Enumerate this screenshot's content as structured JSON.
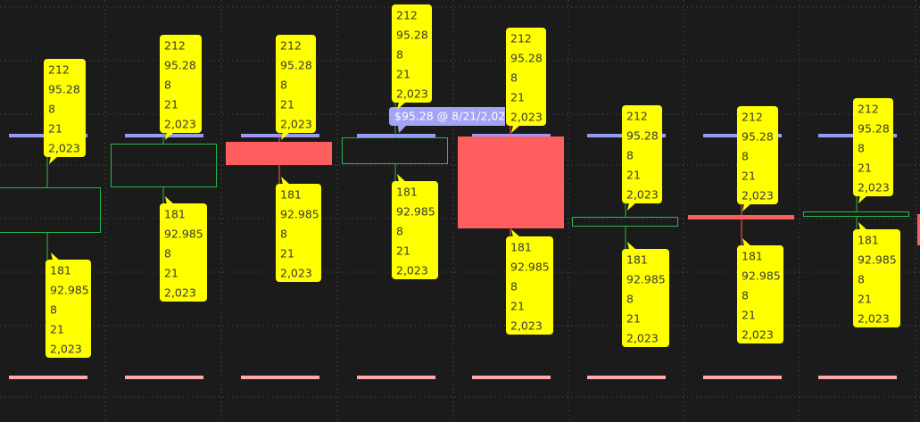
{
  "callouts": [
    {
      "upper": [
        "212",
        "95.28",
        "8",
        "21",
        "2,023"
      ],
      "lower": [
        "181",
        "92.985",
        "8",
        "21",
        "2,023"
      ]
    },
    {
      "upper": [
        "212",
        "95.28",
        "8",
        "21",
        "2,023"
      ],
      "lower": [
        "181",
        "92.985",
        "8",
        "21",
        "2,023"
      ]
    },
    {
      "upper": [
        "212",
        "95.28",
        "8",
        "21",
        "2,023"
      ],
      "lower": [
        "181",
        "92.985",
        "8",
        "21",
        "2,023"
      ]
    },
    {
      "upper": [
        "212",
        "95.28",
        "8",
        "21",
        "2,023"
      ],
      "lower": [
        "181",
        "92.985",
        "8",
        "21",
        "2,023"
      ]
    },
    {
      "upper": [
        "212",
        "95.28",
        "8",
        "21",
        "2,023"
      ],
      "lower": [
        "181",
        "92.985",
        "8",
        "21",
        "2,023"
      ]
    },
    {
      "upper": [
        "212",
        "95.28",
        "8",
        "21",
        "2,023"
      ],
      "lower": [
        "181",
        "92.985",
        "8",
        "21",
        "2,023"
      ]
    },
    {
      "upper": [
        "212",
        "95.28",
        "8",
        "21",
        "2,023"
      ],
      "lower": [
        "181",
        "92.985",
        "8",
        "21",
        "2,023"
      ]
    },
    {
      "upper": [
        "212",
        "95.28",
        "8",
        "21",
        "2,023"
      ],
      "lower": [
        "181",
        "92.985",
        "8",
        "21",
        "2,023"
      ]
    }
  ],
  "tooltip": "$95.28 @ 8/21/2,02"
}
